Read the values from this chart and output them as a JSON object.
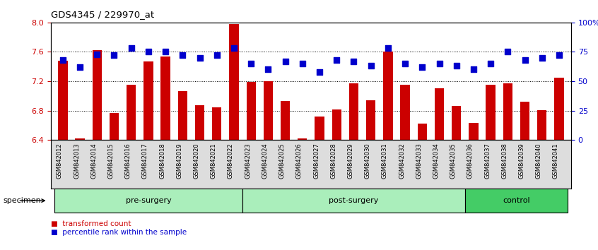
{
  "title": "GDS4345 / 229970_at",
  "samples": [
    "GSM842012",
    "GSM842013",
    "GSM842014",
    "GSM842015",
    "GSM842016",
    "GSM842017",
    "GSM842018",
    "GSM842019",
    "GSM842020",
    "GSM842021",
    "GSM842022",
    "GSM842023",
    "GSM842024",
    "GSM842025",
    "GSM842026",
    "GSM842027",
    "GSM842028",
    "GSM842029",
    "GSM842030",
    "GSM842031",
    "GSM842032",
    "GSM842033",
    "GSM842034",
    "GSM842035",
    "GSM842036",
    "GSM842037",
    "GSM842038",
    "GSM842039",
    "GSM842040",
    "GSM842041"
  ],
  "bar_values": [
    7.48,
    6.42,
    7.62,
    6.77,
    7.15,
    7.47,
    7.54,
    7.07,
    6.87,
    6.84,
    7.98,
    7.19,
    7.2,
    6.93,
    6.42,
    6.72,
    6.82,
    7.17,
    6.94,
    7.6,
    7.15,
    6.62,
    7.1,
    6.86,
    6.63,
    7.15,
    7.17,
    6.92,
    6.81,
    7.25
  ],
  "percentile_values": [
    68,
    62,
    73,
    72,
    78,
    75,
    75,
    72,
    70,
    72,
    78,
    65,
    60,
    67,
    65,
    58,
    68,
    67,
    63,
    78,
    65,
    62,
    65,
    63,
    60,
    65,
    75,
    68,
    70,
    72
  ],
  "bar_color": "#cc0000",
  "percentile_color": "#0000cc",
  "ylim_left": [
    6.4,
    8.0
  ],
  "ylim_right": [
    0,
    100
  ],
  "yticks_left": [
    6.4,
    6.8,
    7.2,
    7.6,
    8.0
  ],
  "yticks_right": [
    0,
    25,
    50,
    75,
    100
  ],
  "yticklabels_right": [
    "0",
    "25",
    "50",
    "75",
    "100%"
  ],
  "grid_values": [
    6.8,
    7.2,
    7.6
  ],
  "groups": [
    {
      "label": "pre-surgery",
      "start": 0,
      "end": 11,
      "color": "#aaeebb"
    },
    {
      "label": "post-surgery",
      "start": 11,
      "end": 24,
      "color": "#aaeebb"
    },
    {
      "label": "control",
      "start": 24,
      "end": 30,
      "color": "#44cc66"
    }
  ],
  "specimen_label": "specimen",
  "legend_bar_label": "transformed count",
  "legend_dot_label": "percentile rank within the sample",
  "tick_label_color": "#cc0000",
  "tick_label_right_color": "#0000cc",
  "xtick_bg_color": "#dddddd"
}
